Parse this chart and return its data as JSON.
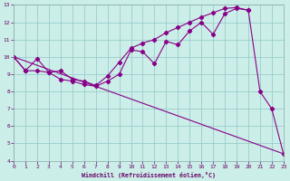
{
  "xlabel": "Windchill (Refroidissement éolien,°C)",
  "bg_color": "#cceee8",
  "line_color": "#880088",
  "grid_color": "#99cccc",
  "xlim": [
    0,
    23
  ],
  "ylim": [
    4,
    13
  ],
  "xticks": [
    0,
    1,
    2,
    3,
    4,
    5,
    6,
    7,
    8,
    9,
    10,
    11,
    12,
    13,
    14,
    15,
    16,
    17,
    18,
    19,
    20,
    21,
    22,
    23
  ],
  "yticks": [
    4,
    5,
    6,
    7,
    8,
    9,
    10,
    11,
    12,
    13
  ],
  "line1_x": [
    0,
    1,
    2,
    3,
    4,
    5,
    6,
    7,
    8,
    9,
    10,
    11,
    12,
    13,
    14,
    15,
    16,
    17,
    18,
    19,
    20,
    21,
    22,
    23
  ],
  "line1_y": [
    10.0,
    9.2,
    9.9,
    9.1,
    9.2,
    8.7,
    8.6,
    8.35,
    8.9,
    9.7,
    10.5,
    10.8,
    11.0,
    11.4,
    11.7,
    12.0,
    12.3,
    12.55,
    12.8,
    12.85,
    12.7,
    null,
    null,
    null
  ],
  "line2_x": [
    0,
    1,
    2,
    3,
    4,
    5,
    6,
    7,
    8,
    9,
    10,
    11,
    12,
    13,
    14,
    15,
    16,
    17,
    18,
    19,
    20,
    21,
    22,
    23
  ],
  "line2_y": [
    10.0,
    9.2,
    9.2,
    9.1,
    8.7,
    8.6,
    8.4,
    8.3,
    8.6,
    9.0,
    10.4,
    10.3,
    9.6,
    10.9,
    10.7,
    11.5,
    12.0,
    11.3,
    12.5,
    12.8,
    12.7,
    8.0,
    7.0,
    4.4
  ],
  "line3_x": [
    0,
    23
  ],
  "line3_y": [
    10.0,
    4.4
  ]
}
